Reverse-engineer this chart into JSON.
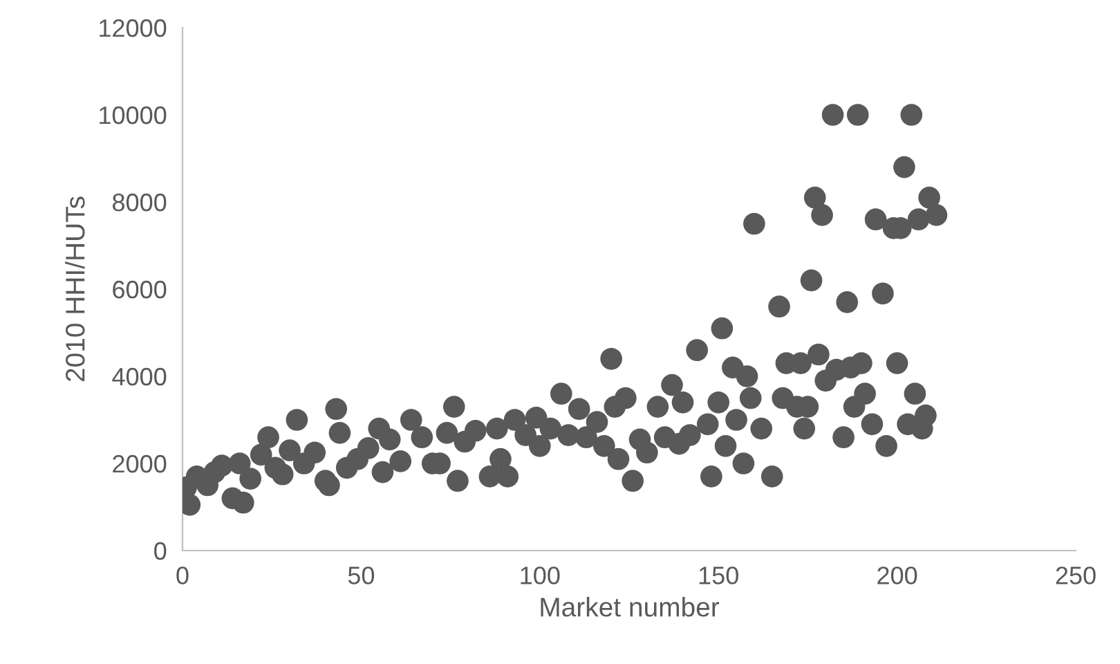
{
  "chart_data": {
    "type": "scatter",
    "xlabel": "Market number",
    "ylabel": "2010 HHI/HUTs",
    "xlim": [
      0,
      250
    ],
    "xticks": [
      0,
      50,
      100,
      150,
      200,
      250
    ],
    "ylim": [
      0,
      12000
    ],
    "yticks": [
      0,
      2000,
      4000,
      6000,
      8000,
      10000,
      12000
    ],
    "grid": false,
    "marker": "circle",
    "series": [
      {
        "color": "#595959",
        "x": [
          1,
          2,
          4,
          7,
          9,
          11,
          14,
          16,
          17,
          19,
          22,
          24,
          26,
          28,
          30,
          32,
          34,
          37,
          40,
          41,
          43,
          44,
          46,
          49,
          52,
          55,
          56,
          58,
          61,
          64,
          67,
          70,
          72,
          74,
          76,
          77,
          79,
          82,
          86,
          88,
          89,
          91,
          93,
          96,
          99,
          100,
          103,
          106,
          108,
          111,
          113,
          116,
          118,
          120,
          121,
          122,
          124,
          126,
          128,
          130,
          133,
          135,
          137,
          139,
          140,
          142,
          144,
          147,
          148,
          150,
          151,
          152,
          154,
          155,
          157,
          158,
          159,
          160,
          162,
          165,
          167,
          168,
          169,
          172,
          173,
          174,
          175,
          176,
          177,
          178,
          179,
          180,
          182,
          183,
          185,
          186,
          187,
          188,
          189,
          190,
          191,
          193,
          194,
          196,
          197,
          199,
          200,
          201,
          202,
          203,
          204,
          205,
          206,
          207,
          208,
          209,
          211
        ],
        "values": [
          1450,
          1050,
          1700,
          1500,
          1800,
          1950,
          1200,
          2000,
          1100,
          1650,
          2200,
          2600,
          1900,
          1750,
          2300,
          3000,
          2000,
          2250,
          1600,
          1500,
          3250,
          2700,
          1900,
          2100,
          2350,
          2800,
          1800,
          2550,
          2050,
          3000,
          2600,
          2000,
          2000,
          2700,
          3300,
          1600,
          2500,
          2750,
          1700,
          2800,
          2100,
          1700,
          3000,
          2650,
          3050,
          2400,
          2800,
          3600,
          2650,
          3250,
          2600,
          2950,
          2400,
          4400,
          3300,
          2100,
          3500,
          1600,
          2550,
          2250,
          3300,
          2600,
          3800,
          2450,
          3400,
          2650,
          4600,
          2900,
          1700,
          3400,
          5100,
          2400,
          4200,
          3000,
          2000,
          4000,
          3500,
          7500,
          2800,
          1700,
          5600,
          3500,
          4300,
          3300,
          4300,
          2800,
          3300,
          6200,
          8100,
          4500,
          7700,
          3900,
          10000,
          4150,
          2600,
          5700,
          4200,
          3300,
          10000,
          4300,
          3600,
          2900,
          7600,
          5900,
          2400,
          7400,
          4300,
          7400,
          8800,
          2900,
          10000,
          3600,
          7600,
          2800,
          3100,
          8100,
          7700
        ]
      }
    ]
  }
}
